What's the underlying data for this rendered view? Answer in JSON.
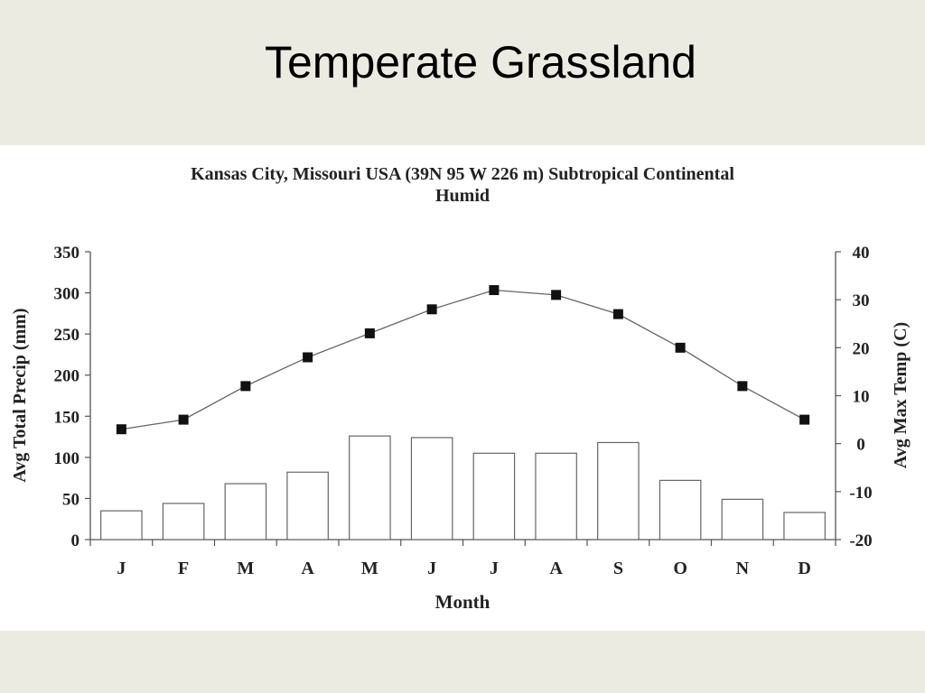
{
  "slide": {
    "title": "Temperate Grassland"
  },
  "chart_data": {
    "type": "bar+line",
    "title": "Kansas City, Missouri USA (39N 95 W 226 m) Subtropical Continental",
    "title_line2": "Humid",
    "xlabel": "Month",
    "ylabel_left": "Avg Total Precip (mm)",
    "ylabel_right": "Avg Max Temp (C)",
    "categories": [
      "J",
      "F",
      "M",
      "A",
      "M",
      "J",
      "J",
      "A",
      "S",
      "O",
      "N",
      "D"
    ],
    "ylim_left": [
      0,
      350
    ],
    "yticks_left": [
      0,
      50,
      100,
      150,
      200,
      250,
      300,
      350
    ],
    "ylim_right": [
      -20,
      40
    ],
    "yticks_right": [
      -20,
      -10,
      0,
      10,
      20,
      30,
      40
    ],
    "grid": false,
    "series": [
      {
        "type": "bar",
        "axis": "left",
        "values": [
          35,
          44,
          68,
          82,
          126,
          124,
          105,
          105,
          118,
          72,
          49,
          33
        ]
      },
      {
        "type": "line",
        "axis": "right",
        "marker": "square",
        "values": [
          3,
          5,
          12,
          18,
          23,
          28,
          32,
          31,
          27,
          20,
          12,
          5
        ]
      }
    ]
  }
}
